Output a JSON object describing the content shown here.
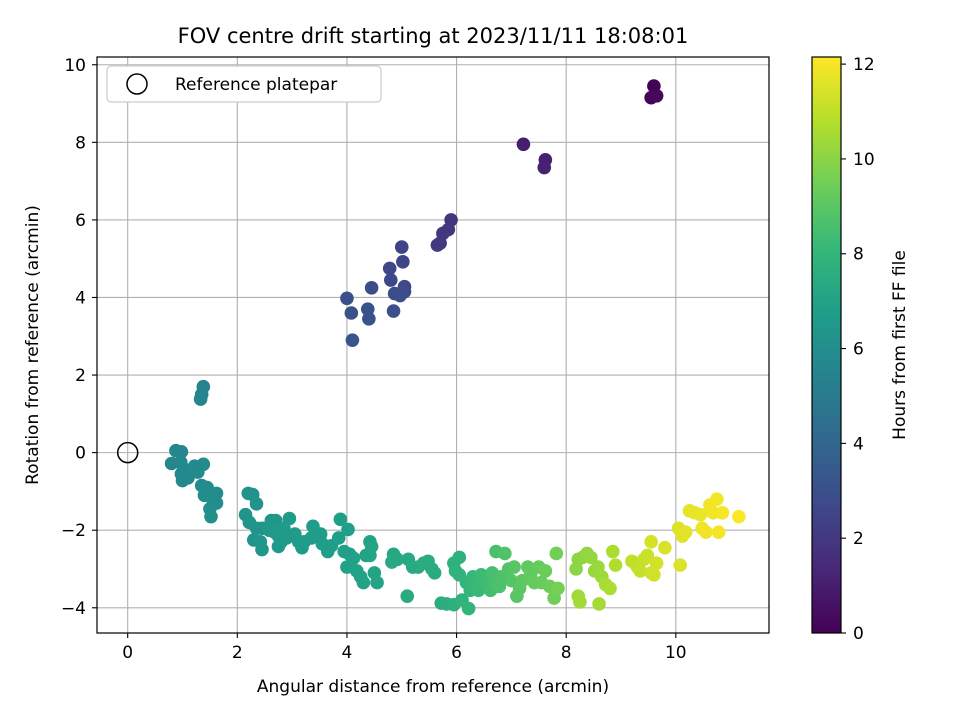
{
  "chart_data": {
    "type": "scatter",
    "title": "FOV centre drift starting at 2023/11/11 18:08:01",
    "xlabel": "Angular distance from reference (arcmin)",
    "ylabel": "Rotation from reference (arcmin)",
    "xlim": [
      -0.56,
      11.7
    ],
    "ylim": [
      -4.65,
      10.2
    ],
    "xticks": [
      0,
      2,
      4,
      6,
      8,
      10
    ],
    "yticks": [
      -4,
      -2,
      0,
      2,
      4,
      6,
      8,
      10
    ],
    "grid": true,
    "legend": {
      "position": "top-left",
      "entries": [
        {
          "label": "Reference platepar",
          "marker": "open-circle"
        }
      ]
    },
    "reference_point": {
      "x": 0,
      "y": 0
    },
    "colorbar": {
      "label": "Hours from first FF file",
      "range": [
        0,
        12.15
      ],
      "ticks": [
        0,
        2,
        4,
        6,
        8,
        10,
        12
      ],
      "colormap": "viridis",
      "stops": [
        "#440154",
        "#482878",
        "#3e4989",
        "#31688e",
        "#26828e",
        "#1f9e89",
        "#35b779",
        "#6ece58",
        "#b5de2b",
        "#fde725"
      ]
    },
    "series": [
      {
        "points": [
          [
            9.6,
            9.45,
            0.05
          ],
          [
            9.55,
            9.15,
            0.15
          ],
          [
            9.65,
            9.2,
            0.25
          ],
          [
            7.22,
            7.95,
            1.0
          ],
          [
            7.62,
            7.55,
            1.1
          ],
          [
            7.6,
            7.35,
            1.15
          ],
          [
            5.9,
            6.0,
            1.9
          ],
          [
            5.85,
            5.75,
            1.95
          ],
          [
            5.75,
            5.65,
            2.0
          ],
          [
            5.7,
            5.4,
            2.05
          ],
          [
            5.65,
            5.35,
            2.1
          ],
          [
            5.0,
            5.3,
            2.5
          ],
          [
            5.02,
            4.92,
            2.55
          ],
          [
            4.78,
            4.75,
            2.6
          ],
          [
            4.8,
            4.45,
            2.65
          ],
          [
            5.05,
            4.28,
            2.7
          ],
          [
            5.05,
            4.15,
            2.75
          ],
          [
            4.87,
            4.1,
            2.8
          ],
          [
            4.97,
            4.05,
            2.85
          ],
          [
            4.45,
            4.25,
            2.9
          ],
          [
            4.85,
            3.65,
            2.95
          ],
          [
            4.0,
            3.98,
            3.0
          ],
          [
            4.08,
            3.6,
            3.05
          ],
          [
            4.38,
            3.7,
            3.1
          ],
          [
            4.4,
            3.45,
            3.15
          ],
          [
            4.1,
            2.9,
            3.2
          ],
          [
            1.38,
            1.7,
            5.4
          ],
          [
            1.35,
            1.5,
            5.45
          ],
          [
            1.33,
            1.38,
            5.5
          ],
          [
            0.88,
            0.05,
            5.6
          ],
          [
            0.98,
            0.02,
            5.62
          ],
          [
            0.8,
            -0.28,
            5.65
          ],
          [
            0.97,
            -0.25,
            5.68
          ],
          [
            1.02,
            -0.42,
            5.7
          ],
          [
            0.98,
            -0.55,
            5.72
          ],
          [
            1.1,
            -0.65,
            5.74
          ],
          [
            1.0,
            -0.72,
            5.76
          ],
          [
            1.22,
            -0.35,
            5.78
          ],
          [
            1.28,
            -0.5,
            5.8
          ],
          [
            1.38,
            -0.3,
            5.82
          ],
          [
            1.35,
            -0.85,
            5.84
          ],
          [
            1.45,
            -0.9,
            5.86
          ],
          [
            1.4,
            -1.1,
            5.88
          ],
          [
            1.62,
            -1.05,
            5.9
          ],
          [
            1.55,
            -1.2,
            5.92
          ],
          [
            1.62,
            -1.3,
            5.94
          ],
          [
            1.5,
            -1.45,
            5.96
          ],
          [
            1.52,
            -1.65,
            5.98
          ],
          [
            2.2,
            -1.05,
            6.2
          ],
          [
            2.28,
            -1.08,
            6.22
          ],
          [
            2.35,
            -1.32,
            6.24
          ],
          [
            2.15,
            -1.6,
            6.26
          ],
          [
            2.22,
            -1.8,
            6.28
          ],
          [
            2.35,
            -1.95,
            6.3
          ],
          [
            2.45,
            -1.95,
            6.32
          ],
          [
            2.3,
            -2.25,
            6.34
          ],
          [
            2.42,
            -2.3,
            6.36
          ],
          [
            2.45,
            -2.5,
            6.38
          ],
          [
            2.62,
            -1.75,
            6.4
          ],
          [
            2.7,
            -1.75,
            6.42
          ],
          [
            2.58,
            -2.0,
            6.44
          ],
          [
            2.68,
            -2.05,
            6.46
          ],
          [
            2.75,
            -2.15,
            6.48
          ],
          [
            2.8,
            -2.3,
            6.5
          ],
          [
            2.75,
            -2.42,
            6.52
          ],
          [
            2.85,
            -1.95,
            6.54
          ],
          [
            2.95,
            -1.7,
            6.56
          ],
          [
            2.9,
            -2.2,
            6.58
          ],
          [
            3.05,
            -2.1,
            6.6
          ],
          [
            3.12,
            -2.3,
            6.62
          ],
          [
            3.22,
            -2.3,
            6.64
          ],
          [
            3.18,
            -2.45,
            6.66
          ],
          [
            3.35,
            -2.2,
            6.68
          ],
          [
            3.38,
            -1.9,
            6.7
          ],
          [
            3.52,
            -2.1,
            6.72
          ],
          [
            3.55,
            -2.35,
            6.74
          ],
          [
            3.65,
            -2.55,
            6.76
          ],
          [
            3.72,
            -2.4,
            6.78
          ],
          [
            3.85,
            -2.2,
            6.8
          ],
          [
            3.88,
            -1.72,
            6.82
          ],
          [
            4.02,
            -1.98,
            6.84
          ],
          [
            3.95,
            -2.55,
            6.86
          ],
          [
            4.05,
            -2.62,
            6.88
          ],
          [
            4.12,
            -2.72,
            6.9
          ],
          [
            4.0,
            -2.95,
            6.92
          ],
          [
            4.18,
            -3.05,
            6.94
          ],
          [
            4.25,
            -3.2,
            6.96
          ],
          [
            4.3,
            -3.35,
            6.98
          ],
          [
            4.35,
            -2.65,
            7.0
          ],
          [
            4.42,
            -2.3,
            7.02
          ],
          [
            4.45,
            -2.42,
            7.04
          ],
          [
            4.42,
            -2.65,
            7.06
          ],
          [
            4.5,
            -3.1,
            7.08
          ],
          [
            4.55,
            -3.35,
            7.1
          ],
          [
            4.85,
            -2.62,
            7.3
          ],
          [
            4.82,
            -2.82,
            7.32
          ],
          [
            4.92,
            -2.75,
            7.34
          ],
          [
            5.12,
            -2.75,
            7.36
          ],
          [
            5.2,
            -2.95,
            7.38
          ],
          [
            5.1,
            -3.7,
            7.4
          ],
          [
            5.3,
            -2.95,
            7.42
          ],
          [
            5.4,
            -2.85,
            7.44
          ],
          [
            5.48,
            -2.8,
            7.46
          ],
          [
            5.55,
            -3.0,
            7.48
          ],
          [
            5.6,
            -3.1,
            7.5
          ],
          [
            5.72,
            -3.88,
            7.55
          ],
          [
            5.82,
            -3.9,
            7.6
          ],
          [
            5.95,
            -3.92,
            7.65
          ],
          [
            5.95,
            -2.85,
            7.7
          ],
          [
            6.05,
            -2.7,
            7.75
          ],
          [
            5.98,
            -3.05,
            7.8
          ],
          [
            6.05,
            -3.15,
            7.85
          ],
          [
            6.1,
            -3.8,
            7.9
          ],
          [
            6.18,
            -3.35,
            7.95
          ],
          [
            6.22,
            -4.02,
            8.0
          ],
          [
            6.25,
            -3.55,
            8.05
          ],
          [
            6.3,
            -3.2,
            8.1
          ],
          [
            6.35,
            -3.4,
            8.15
          ],
          [
            6.4,
            -3.55,
            8.2
          ],
          [
            6.45,
            -3.15,
            8.25
          ],
          [
            6.5,
            -3.35,
            8.3
          ],
          [
            6.55,
            -3.25,
            8.35
          ],
          [
            6.6,
            -3.45,
            8.4
          ],
          [
            6.62,
            -3.55,
            8.45
          ],
          [
            6.65,
            -3.1,
            8.5
          ],
          [
            6.7,
            -3.3,
            8.55
          ],
          [
            6.72,
            -2.55,
            8.6
          ],
          [
            6.78,
            -3.45,
            8.65
          ],
          [
            6.82,
            -3.2,
            8.7
          ],
          [
            6.88,
            -2.6,
            8.75
          ],
          [
            6.95,
            -3.0,
            8.8
          ],
          [
            7.0,
            -3.3,
            8.85
          ],
          [
            7.05,
            -2.95,
            8.9
          ],
          [
            7.1,
            -3.7,
            8.95
          ],
          [
            7.15,
            -3.5,
            9.0
          ],
          [
            7.2,
            -3.3,
            9.05
          ],
          [
            7.3,
            -2.95,
            9.1
          ],
          [
            7.35,
            -3.15,
            9.15
          ],
          [
            7.42,
            -3.35,
            9.2
          ],
          [
            7.5,
            -2.95,
            9.25
          ],
          [
            7.55,
            -3.35,
            9.3
          ],
          [
            7.62,
            -3.05,
            9.35
          ],
          [
            7.7,
            -3.45,
            9.4
          ],
          [
            7.78,
            -3.75,
            9.45
          ],
          [
            7.82,
            -2.6,
            9.5
          ],
          [
            7.85,
            -3.5,
            9.55
          ],
          [
            8.18,
            -3.0,
            10.0
          ],
          [
            8.22,
            -2.75,
            10.05
          ],
          [
            8.3,
            -2.7,
            10.1
          ],
          [
            8.38,
            -2.6,
            10.15
          ],
          [
            8.45,
            -2.7,
            10.2
          ],
          [
            8.52,
            -3.05,
            10.25
          ],
          [
            8.58,
            -2.95,
            10.3
          ],
          [
            8.65,
            -3.2,
            10.35
          ],
          [
            8.22,
            -3.7,
            10.4
          ],
          [
            8.25,
            -3.85,
            10.45
          ],
          [
            8.6,
            -3.9,
            10.5
          ],
          [
            8.72,
            -3.4,
            10.55
          ],
          [
            8.8,
            -3.5,
            10.6
          ],
          [
            8.85,
            -2.55,
            10.65
          ],
          [
            8.9,
            -2.9,
            10.7
          ],
          [
            9.2,
            -2.8,
            11.0
          ],
          [
            9.3,
            -2.95,
            11.05
          ],
          [
            9.35,
            -3.05,
            11.1
          ],
          [
            9.42,
            -2.75,
            11.15
          ],
          [
            9.48,
            -2.65,
            11.2
          ],
          [
            9.55,
            -3.1,
            11.25
          ],
          [
            9.6,
            -3.15,
            11.3
          ],
          [
            9.65,
            -2.85,
            11.35
          ],
          [
            9.55,
            -2.3,
            11.4
          ],
          [
            9.8,
            -2.45,
            11.45
          ],
          [
            10.05,
            -1.95,
            11.5
          ],
          [
            10.08,
            -2.9,
            11.55
          ],
          [
            10.12,
            -2.15,
            11.6
          ],
          [
            10.18,
            -2.05,
            11.65
          ],
          [
            10.25,
            -1.5,
            11.7
          ],
          [
            10.35,
            -1.55,
            11.75
          ],
          [
            10.45,
            -1.6,
            11.8
          ],
          [
            10.48,
            -1.95,
            11.85
          ],
          [
            10.55,
            -2.05,
            11.88
          ],
          [
            10.62,
            -1.35,
            11.9
          ],
          [
            10.68,
            -1.55,
            11.92
          ],
          [
            10.75,
            -1.2,
            11.95
          ],
          [
            10.78,
            -2.05,
            11.98
          ],
          [
            10.85,
            -1.55,
            12.0
          ],
          [
            11.15,
            -1.65,
            12.1
          ]
        ]
      }
    ]
  }
}
